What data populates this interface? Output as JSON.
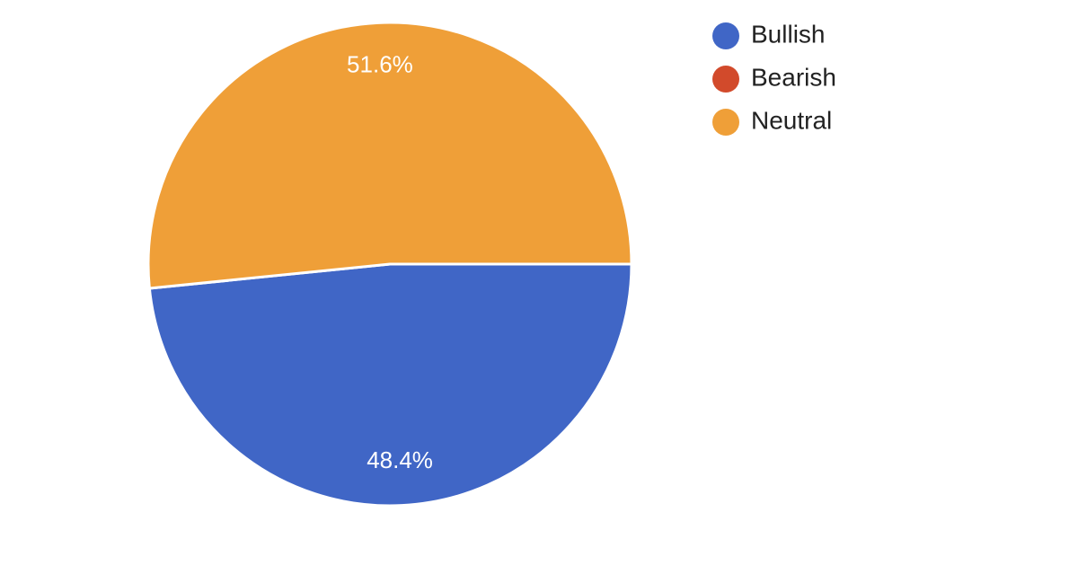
{
  "chart_data": {
    "type": "pie",
    "start_angle_deg": 0,
    "direction": "clockwise",
    "legend_position": "top-right",
    "slices": [
      {
        "name": "Bullish",
        "value": 48.4,
        "label": "48.4%",
        "color": "#4066c6"
      },
      {
        "name": "Bearish",
        "value": 0,
        "label": "",
        "color": "#d24a2b"
      },
      {
        "name": "Neutral",
        "value": 51.6,
        "label": "51.6%",
        "color": "#ef9f38"
      }
    ]
  }
}
